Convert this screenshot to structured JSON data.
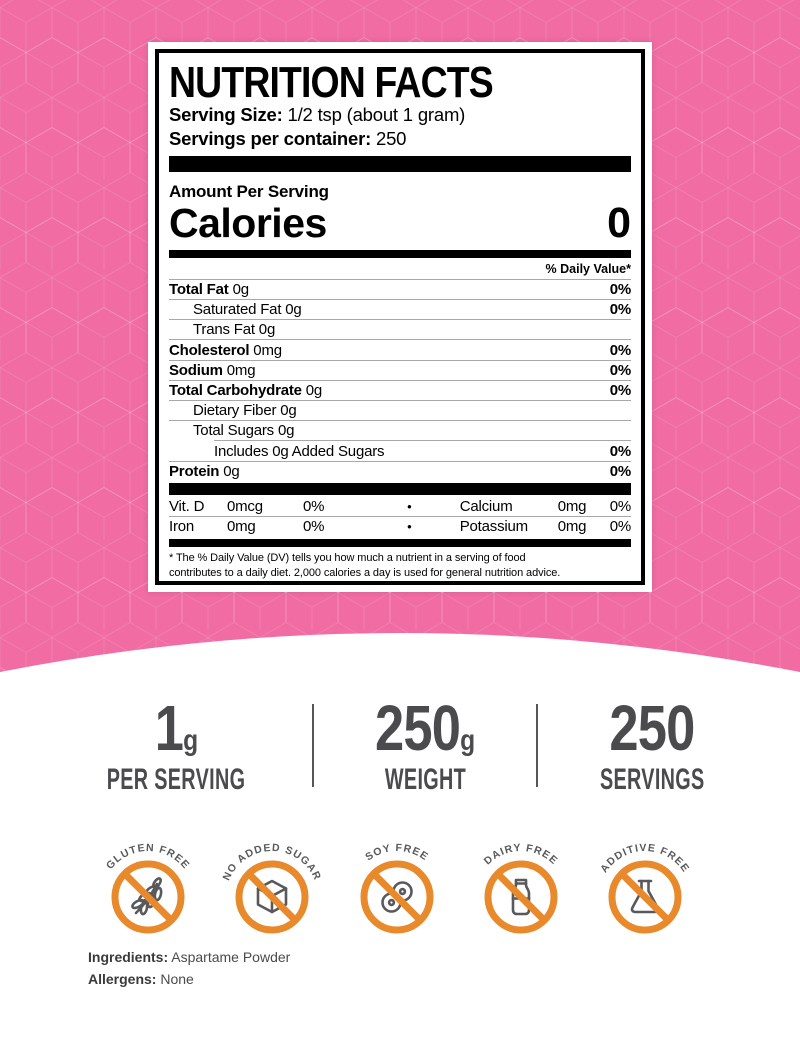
{
  "colors": {
    "background_pink": "#F06CA2",
    "pattern_line": "#FFFFFF",
    "label_background": "#FFFFFF",
    "label_text": "#000000",
    "stats_gray": "#4B4B4D",
    "badge_orange": "#E8892B",
    "badge_glyph_gray": "#58595B"
  },
  "label": {
    "title": "NUTRITION FACTS",
    "serving_size_label": "Serving Size:",
    "serving_size_value": "1/2 tsp (about 1 gram)",
    "servings_label": "Servings per container:",
    "servings_value": "250",
    "amount_per_serving": "Amount Per Serving",
    "calories_label": "Calories",
    "calories_value": "0",
    "daily_value_header": "% Daily Value*",
    "rows": [
      {
        "name": "Total Fat",
        "amount": "0g",
        "dv": "0%",
        "bold": true,
        "indent": 0
      },
      {
        "name": "Saturated Fat",
        "amount": "0g",
        "dv": "0%",
        "bold": false,
        "indent": 1
      },
      {
        "name": "Trans Fat",
        "amount": "0g",
        "dv": "",
        "bold": false,
        "indent": 1
      },
      {
        "name": "Cholesterol",
        "amount": "0mg",
        "dv": "0%",
        "bold": true,
        "indent": 0
      },
      {
        "name": "Sodium",
        "amount": "0mg",
        "dv": "0%",
        "bold": true,
        "indent": 0
      },
      {
        "name": "Total Carbohydrate",
        "amount": "0g",
        "dv": "0%",
        "bold": true,
        "indent": 0
      },
      {
        "name": "Dietary Fiber",
        "amount": "0g",
        "dv": "",
        "bold": false,
        "indent": 1
      },
      {
        "name": "Total Sugars",
        "amount": "0g",
        "dv": "",
        "bold": false,
        "indent": 1
      },
      {
        "name": "Includes 0g Added Sugars",
        "amount": "",
        "dv": "0%",
        "bold": false,
        "indent": 2
      },
      {
        "name": "Protein",
        "amount": "0g",
        "dv": "0%",
        "bold": true,
        "indent": 0
      }
    ],
    "micronutrients": [
      {
        "name": "Vit. D",
        "amount": "0mcg",
        "dv": "0%",
        "bullet": "•",
        "name2": "Calcium",
        "amount2": "0mg",
        "dv2": "0%"
      },
      {
        "name": "Iron",
        "amount": "0mg",
        "dv": "0%",
        "bullet": "•",
        "name2": "Potassium",
        "amount2": "0mg",
        "dv2": "0%"
      }
    ],
    "footnote_line1": "* The % Daily Value (DV) tells you how much a nutrient in a serving of food",
    "footnote_line2": "contributes to a daily diet. 2,000 calories a day is used for general nutrition advice."
  },
  "stats": [
    {
      "value": "1",
      "unit": "g",
      "label": "PER SERVING"
    },
    {
      "value": "250",
      "unit": "g",
      "label": "WEIGHT"
    },
    {
      "value": "250",
      "unit": "",
      "label": "SERVINGS"
    }
  ],
  "badges": [
    {
      "label": "GLUTEN FREE",
      "icon": "wheat-icon"
    },
    {
      "label": "NO ADDED SUGAR",
      "icon": "sugar-cube-icon"
    },
    {
      "label": "SOY FREE",
      "icon": "soybean-icon"
    },
    {
      "label": "DAIRY FREE",
      "icon": "milk-bottle-icon"
    },
    {
      "label": "ADDITIVE FREE",
      "icon": "flask-icon"
    }
  ],
  "footer": {
    "ingredients_label": "Ingredients:",
    "ingredients_value": "Aspartame Powder",
    "allergens_label": "Allergens:",
    "allergens_value": "None"
  }
}
